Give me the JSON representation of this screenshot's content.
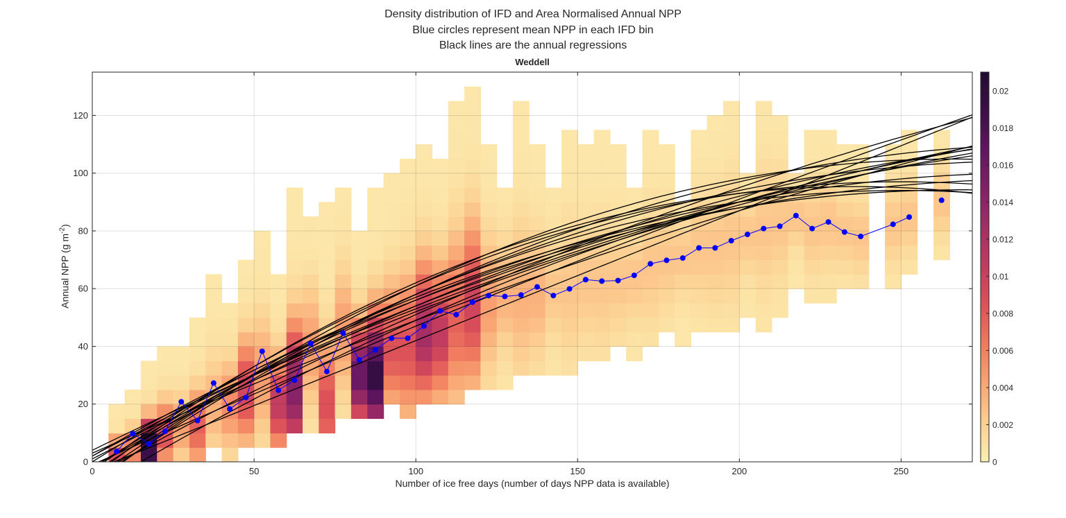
{
  "figure": {
    "title_lines": [
      "Density distribution of IFD and Area Normalised Annual NPP",
      "Blue circles represent mean NPP in each IFD bin",
      "Black lines are the annual regressions"
    ],
    "panel_title": "Weddell"
  },
  "chart_data": {
    "type": "heatmap",
    "xlabel": "Number of ice free days (number of days NPP data is available)",
    "ylabel": "Annual NPP",
    "ylabel_unit": "(g m",
    "ylabel_exp": "-2",
    "xlim": [
      0,
      272
    ],
    "ylim": [
      0,
      135
    ],
    "xticks": [
      0,
      50,
      100,
      150,
      200,
      250
    ],
    "yticks": [
      0,
      20,
      40,
      60,
      80,
      100,
      120
    ],
    "grid": true,
    "colorbar": {
      "position": "right",
      "colormap": "magma-reversed",
      "limits": [
        0,
        0.021
      ],
      "ticks": [
        0,
        0.002,
        0.004,
        0.006,
        0.008,
        0.01,
        0.012,
        0.014,
        0.016,
        0.018,
        0.02
      ],
      "tick_labels": [
        "0",
        "0.002",
        "0.004",
        "0.006",
        "0.008",
        "0.01",
        "0.012",
        "0.014",
        "0.016",
        "0.018",
        "0.02"
      ]
    },
    "heatmap": {
      "x_bin_width": 5,
      "y_bin_width": 5,
      "columns": [
        {
          "x": 5,
          "y0": 0,
          "y1": 20,
          "peak_y": 3,
          "peak": 0.008
        },
        {
          "x": 10,
          "y0": 0,
          "y1": 25,
          "peak_y": 5,
          "peak": 0.006
        },
        {
          "x": 15,
          "y0": 0,
          "y1": 35,
          "peak_y": 5,
          "peak": 0.02
        },
        {
          "x": 20,
          "y0": 0,
          "y1": 40,
          "peak_y": 10,
          "peak": 0.008
        },
        {
          "x": 25,
          "y0": 0,
          "y1": 40,
          "peak_y": 12,
          "peak": 0.004
        },
        {
          "x": 30,
          "y0": 0,
          "y1": 50,
          "peak_y": 12,
          "peak": 0.007
        },
        {
          "x": 35,
          "y0": 5,
          "y1": 65,
          "peak_y": 20,
          "peak": 0.003
        },
        {
          "x": 40,
          "y0": 0,
          "y1": 55,
          "peak_y": 20,
          "peak": 0.005
        },
        {
          "x": 45,
          "y0": 5,
          "y1": 70,
          "peak_y": 25,
          "peak": 0.009
        },
        {
          "x": 50,
          "y0": 5,
          "y1": 80,
          "peak_y": 30,
          "peak": 0.004
        },
        {
          "x": 55,
          "y0": 5,
          "y1": 65,
          "peak_y": 20,
          "peak": 0.01
        },
        {
          "x": 60,
          "y0": 10,
          "y1": 95,
          "peak_y": 25,
          "peak": 0.014
        },
        {
          "x": 65,
          "y0": 10,
          "y1": 85,
          "peak_y": 40,
          "peak": 0.004
        },
        {
          "x": 70,
          "y0": 10,
          "y1": 90,
          "peak_y": 20,
          "peak": 0.008
        },
        {
          "x": 75,
          "y0": 15,
          "y1": 95,
          "peak_y": 45,
          "peak": 0.004
        },
        {
          "x": 80,
          "y0": 15,
          "y1": 80,
          "peak_y": 30,
          "peak": 0.016
        },
        {
          "x": 85,
          "y0": 15,
          "y1": 95,
          "peak_y": 30,
          "peak": 0.019
        },
        {
          "x": 90,
          "y0": 20,
          "y1": 100,
          "peak_y": 40,
          "peak": 0.008
        },
        {
          "x": 95,
          "y0": 15,
          "y1": 105,
          "peak_y": 40,
          "peak": 0.008
        },
        {
          "x": 100,
          "y0": 20,
          "y1": 110,
          "peak_y": 45,
          "peak": 0.012
        },
        {
          "x": 105,
          "y0": 20,
          "y1": 105,
          "peak_y": 45,
          "peak": 0.01
        },
        {
          "x": 110,
          "y0": 20,
          "y1": 125,
          "peak_y": 50,
          "peak": 0.007
        },
        {
          "x": 115,
          "y0": 25,
          "y1": 130,
          "peak_y": 55,
          "peak": 0.009
        },
        {
          "x": 120,
          "y0": 25,
          "y1": 110,
          "peak_y": 55,
          "peak": 0.004
        },
        {
          "x": 125,
          "y0": 25,
          "y1": 95,
          "peak_y": 58,
          "peak": 0.003
        },
        {
          "x": 130,
          "y0": 30,
          "y1": 125,
          "peak_y": 57,
          "peak": 0.003
        },
        {
          "x": 135,
          "y0": 30,
          "y1": 110,
          "peak_y": 58,
          "peak": 0.003
        },
        {
          "x": 140,
          "y0": 30,
          "y1": 95,
          "peak_y": 60,
          "peak": 0.002
        },
        {
          "x": 145,
          "y0": 30,
          "y1": 115,
          "peak_y": 60,
          "peak": 0.002
        },
        {
          "x": 150,
          "y0": 35,
          "y1": 110,
          "peak_y": 62,
          "peak": 0.002
        },
        {
          "x": 155,
          "y0": 35,
          "y1": 115,
          "peak_y": 62,
          "peak": 0.002
        },
        {
          "x": 160,
          "y0": 40,
          "y1": 110,
          "peak_y": 63,
          "peak": 0.002
        },
        {
          "x": 165,
          "y0": 35,
          "y1": 95,
          "peak_y": 64,
          "peak": 0.002
        },
        {
          "x": 170,
          "y0": 40,
          "y1": 115,
          "peak_y": 68,
          "peak": 0.002
        },
        {
          "x": 175,
          "y0": 45,
          "y1": 110,
          "peak_y": 70,
          "peak": 0.002
        },
        {
          "x": 180,
          "y0": 40,
          "y1": 90,
          "peak_y": 71,
          "peak": 0.002
        },
        {
          "x": 185,
          "y0": 45,
          "y1": 115,
          "peak_y": 74,
          "peak": 0.002
        },
        {
          "x": 190,
          "y0": 45,
          "y1": 120,
          "peak_y": 74,
          "peak": 0.002
        },
        {
          "x": 195,
          "y0": 45,
          "y1": 125,
          "peak_y": 77,
          "peak": 0.002
        },
        {
          "x": 200,
          "y0": 50,
          "y1": 100,
          "peak_y": 78,
          "peak": 0.002
        },
        {
          "x": 205,
          "y0": 45,
          "y1": 125,
          "peak_y": 81,
          "peak": 0.002
        },
        {
          "x": 210,
          "y0": 50,
          "y1": 120,
          "peak_y": 82,
          "peak": 0.002
        },
        {
          "x": 215,
          "y0": 60,
          "y1": 100,
          "peak_y": 85,
          "peak": 0.002
        },
        {
          "x": 220,
          "y0": 55,
          "y1": 115,
          "peak_y": 81,
          "peak": 0.002
        },
        {
          "x": 225,
          "y0": 55,
          "y1": 115,
          "peak_y": 83,
          "peak": 0.002
        },
        {
          "x": 230,
          "y0": 60,
          "y1": 110,
          "peak_y": 80,
          "peak": 0.002
        },
        {
          "x": 235,
          "y0": 60,
          "y1": 110,
          "peak_y": 78,
          "peak": 0.002
        },
        {
          "x": 245,
          "y0": 60,
          "y1": 110,
          "peak_y": 82,
          "peak": 0.002
        },
        {
          "x": 250,
          "y0": 65,
          "y1": 115,
          "peak_y": 85,
          "peak": 0.002
        },
        {
          "x": 260,
          "y0": 70,
          "y1": 115,
          "peak_y": 90,
          "peak": 0.002
        }
      ]
    },
    "mean_npp": {
      "color": "#0000ff",
      "x": [
        7.5,
        12.5,
        17.5,
        22.5,
        27.5,
        32.5,
        37.5,
        42.5,
        47.5,
        52.5,
        57.5,
        62.5,
        67.5,
        72.5,
        77.5,
        82.5,
        87.5,
        92.5,
        97.5,
        102.5,
        107.5,
        112.5,
        117.5,
        122.5,
        127.5,
        132.5,
        137.5,
        142.5,
        147.5,
        152.5,
        157.5,
        162.5,
        167.5,
        172.5,
        177.5,
        182.5,
        187.5,
        192.5,
        197.5,
        202.5,
        207.5,
        212.5,
        217.5,
        222.5,
        227.5,
        232.5,
        237.5,
        247.5,
        252.5,
        262.5
      ],
      "y": [
        3.6,
        9.8,
        6.2,
        10.6,
        20.8,
        14.3,
        27.3,
        18.3,
        22.3,
        38.3,
        24.8,
        28.3,
        41,
        31.3,
        44.6,
        35.3,
        38.8,
        42.8,
        42.8,
        47,
        52.3,
        51,
        55.3,
        57.6,
        57.3,
        57.8,
        60.6,
        57.6,
        59.9,
        63.1,
        62.6,
        62.8,
        64.6,
        68.6,
        69.8,
        70.6,
        74.1,
        74.1,
        76.6,
        78.8,
        80.8,
        81.6,
        85.3,
        80.8,
        83.1,
        79.6,
        78.1,
        82.3,
        84.8,
        90.6
      ]
    },
    "annual_regressions": {
      "color": "#000000",
      "model": "y = a + b*x + c*x^2",
      "lines": [
        {
          "a": -5,
          "b": 0.85,
          "c": -0.0018
        },
        {
          "a": -3,
          "b": 0.8,
          "c": -0.0016
        },
        {
          "a": -8,
          "b": 0.85,
          "c": -0.0016
        },
        {
          "a": 0,
          "b": 0.7,
          "c": -0.0013
        },
        {
          "a": 2,
          "b": 0.6,
          "c": -0.0008
        },
        {
          "a": -2,
          "b": 0.65,
          "c": -0.0009
        },
        {
          "a": 4,
          "b": 0.55,
          "c": -0.0006
        },
        {
          "a": -4,
          "b": 0.75,
          "c": -0.0013
        },
        {
          "a": 1,
          "b": 0.58,
          "c": -0.0007
        },
        {
          "a": -6,
          "b": 0.8,
          "c": -0.0016
        },
        {
          "a": -1,
          "b": 0.5,
          "c": -0.0002
        },
        {
          "a": 3,
          "b": 0.5,
          "c": -0.0004
        },
        {
          "a": -5,
          "b": 0.62,
          "c": -0.0006
        },
        {
          "a": -3,
          "b": 0.45,
          "c": 0.0
        },
        {
          "a": -2,
          "b": 0.7,
          "c": -0.0012
        },
        {
          "a": 2,
          "b": 0.65,
          "c": -0.0011
        },
        {
          "a": -10,
          "b": 0.68,
          "c": -0.0009
        },
        {
          "a": -7,
          "b": 0.78,
          "c": -0.0013
        }
      ]
    }
  }
}
